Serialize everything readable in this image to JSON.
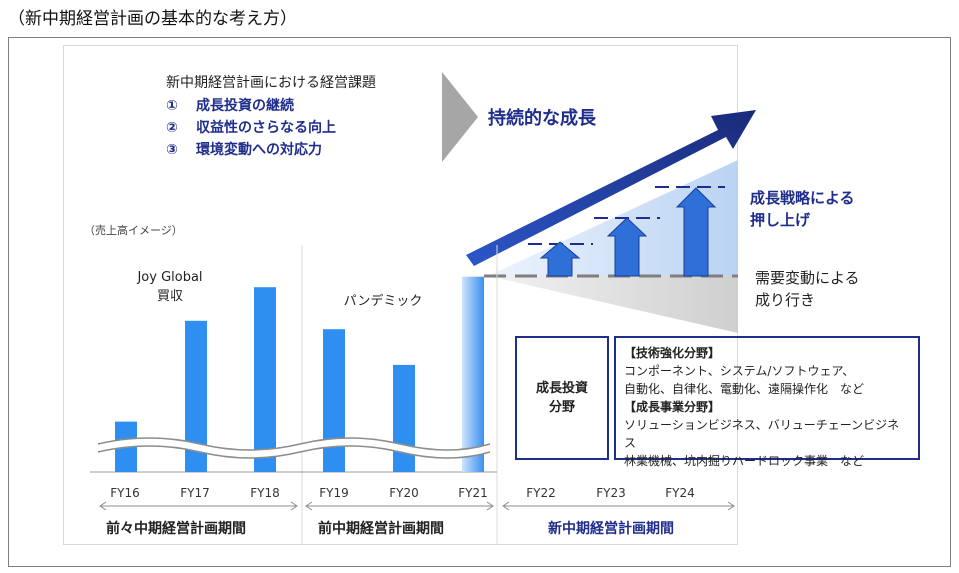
{
  "heading": "（新中期経営計画の基本的な考え方）",
  "issues": {
    "title": "新中期経営計画における経営課題",
    "items": [
      {
        "num": "①",
        "text": "成長投資の継続"
      },
      {
        "num": "②",
        "text": "収益性のさらなる向上"
      },
      {
        "num": "③",
        "text": "環境変動への対応力"
      }
    ]
  },
  "goal": "持続的な成長",
  "sales_note": "（売上高イメージ）",
  "annotations": {
    "joy_global_1": "Joy Global",
    "joy_global_2": "買収",
    "pandemic": "パンデミック"
  },
  "growth_strategy": {
    "line1": "成長戦略による",
    "line2": "押し上げ"
  },
  "demand_trend": {
    "line1": "需要変動による",
    "line2": "成り行き"
  },
  "investment_box": {
    "title_line1": "成長投資",
    "title_line2": "分野",
    "tech_header": "【技術強化分野】",
    "tech_line1": "コンポーネント、システム/ソフトウェア、",
    "tech_line2": "自動化、自律化、電動化、遠隔操作化　など",
    "biz_header": "【成長事業分野】",
    "biz_line1": "ソリューションビジネス、バリューチェーンビジネス",
    "biz_line2": "林業機械、坑内掘りハードロック事業　など"
  },
  "chart_data": {
    "type": "bar",
    "categories": [
      "FY16",
      "FY17",
      "FY18",
      "FY19",
      "FY20",
      "FY21",
      "FY22",
      "FY23",
      "FY24"
    ],
    "values": [
      24,
      72,
      88,
      68,
      51,
      93,
      null,
      null,
      null
    ],
    "y_axis": "none (image only)",
    "axis_break": true
  },
  "periods": [
    {
      "label": "前々中期経営計画期間",
      "color": "#1a1a1a"
    },
    {
      "label": "前中期経営計画期間",
      "color": "#1a1a1a"
    },
    {
      "label": "新中期経営計画期間",
      "color": "#1f2d8c"
    }
  ],
  "colors": {
    "navy": "#1f2d8c",
    "bar_blue": "#2e8ff0",
    "arrow_blue": "#2e6fd8",
    "gray_wedge": "#d9d9d9"
  }
}
